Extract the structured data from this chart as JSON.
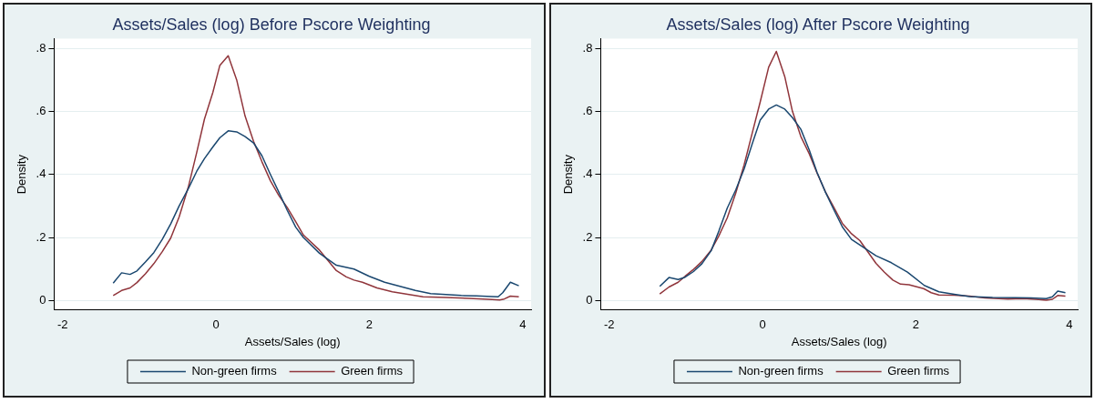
{
  "chart_data": [
    {
      "type": "line",
      "title": "Assets/Sales (log) Before Pscore Weighting",
      "xlabel": "Assets/Sales (log)",
      "ylabel": "Density",
      "xlim": [
        -2.11,
        4.11
      ],
      "xticks": [
        -2,
        0,
        2,
        4
      ],
      "ylim": [
        -0.03,
        0.83
      ],
      "yticks": [
        {
          "value": 0,
          "label": "0"
        },
        {
          "value": 0.2,
          "label": ".2"
        },
        {
          "value": 0.4,
          "label": ".4"
        },
        {
          "value": 0.6,
          "label": ".6"
        },
        {
          "value": 0.8,
          "label": ".8"
        }
      ],
      "grid": "y",
      "legend": "bottom",
      "marker": "none",
      "line_style": "solid",
      "series": [
        {
          "name": "Non-green firms",
          "color": "#1a476f",
          "x": [
            -1.34,
            -1.23,
            -1.12,
            -1.03,
            -0.92,
            -0.81,
            -0.7,
            -0.59,
            -0.48,
            -0.36,
            -0.25,
            -0.15,
            -0.04,
            0.05,
            0.16,
            0.27,
            0.38,
            0.49,
            0.6,
            0.71,
            0.82,
            0.93,
            1.04,
            1.14,
            1.35,
            1.57,
            1.8,
            2.0,
            2.2,
            2.4,
            2.6,
            2.8,
            3.0,
            3.2,
            3.4,
            3.6,
            3.68,
            3.74,
            3.84,
            3.95
          ],
          "values": [
            0.055,
            0.088,
            0.083,
            0.094,
            0.122,
            0.152,
            0.194,
            0.243,
            0.3,
            0.355,
            0.41,
            0.45,
            0.487,
            0.516,
            0.538,
            0.535,
            0.52,
            0.5,
            0.459,
            0.4,
            0.344,
            0.286,
            0.233,
            0.2,
            0.15,
            0.112,
            0.1,
            0.077,
            0.058,
            0.045,
            0.032,
            0.022,
            0.019,
            0.016,
            0.015,
            0.013,
            0.012,
            0.025,
            0.058,
            0.047
          ]
        },
        {
          "name": "Green firms",
          "color": "#90353b",
          "x": [
            -1.34,
            -1.23,
            -1.12,
            -1.03,
            -0.92,
            -0.81,
            -0.7,
            -0.59,
            -0.48,
            -0.36,
            -0.25,
            -0.15,
            -0.04,
            0.05,
            0.16,
            0.27,
            0.38,
            0.49,
            0.6,
            0.71,
            0.82,
            0.93,
            1.04,
            1.14,
            1.35,
            1.57,
            1.7,
            1.8,
            1.91,
            2.1,
            2.3,
            2.5,
            2.7,
            3.0,
            3.3,
            3.6,
            3.7,
            3.76,
            3.84,
            3.95
          ],
          "values": [
            0.016,
            0.032,
            0.04,
            0.057,
            0.085,
            0.117,
            0.155,
            0.198,
            0.265,
            0.36,
            0.47,
            0.575,
            0.66,
            0.745,
            0.776,
            0.7,
            0.585,
            0.505,
            0.44,
            0.38,
            0.333,
            0.295,
            0.25,
            0.208,
            0.16,
            0.095,
            0.075,
            0.065,
            0.058,
            0.04,
            0.028,
            0.02,
            0.012,
            0.01,
            0.007,
            0.003,
            0.002,
            0.005,
            0.014,
            0.012
          ]
        }
      ]
    },
    {
      "type": "line",
      "title": "Assets/Sales (log) After Pscore Weighting",
      "xlabel": "Assets/Sales (log)",
      "ylabel": "Density",
      "xlim": [
        -2.11,
        4.11
      ],
      "xticks": [
        -2,
        0,
        2,
        4
      ],
      "ylim": [
        -0.03,
        0.83
      ],
      "yticks": [
        {
          "value": 0,
          "label": "0"
        },
        {
          "value": 0.2,
          "label": ".2"
        },
        {
          "value": 0.4,
          "label": ".4"
        },
        {
          "value": 0.6,
          "label": ".6"
        },
        {
          "value": 0.8,
          "label": ".8"
        }
      ],
      "grid": "y",
      "legend": "bottom",
      "marker": "none",
      "line_style": "solid",
      "series": [
        {
          "name": "Non-green firms",
          "color": "#1a476f",
          "x": [
            -1.34,
            -1.22,
            -1.1,
            -1.01,
            -0.9,
            -0.79,
            -0.67,
            -0.57,
            -0.46,
            -0.35,
            -0.24,
            -0.13,
            -0.03,
            0.08,
            0.18,
            0.29,
            0.39,
            0.5,
            0.61,
            0.71,
            0.82,
            0.93,
            1.04,
            1.16,
            1.48,
            1.68,
            1.89,
            2.11,
            2.3,
            2.5,
            2.7,
            3.0,
            3.3,
            3.5,
            3.7,
            3.78,
            3.85,
            3.95
          ],
          "values": [
            0.045,
            0.073,
            0.067,
            0.074,
            0.092,
            0.117,
            0.158,
            0.22,
            0.293,
            0.35,
            0.417,
            0.5,
            0.572,
            0.607,
            0.62,
            0.607,
            0.58,
            0.543,
            0.477,
            0.407,
            0.344,
            0.288,
            0.234,
            0.194,
            0.142,
            0.12,
            0.09,
            0.048,
            0.028,
            0.02,
            0.013,
            0.01,
            0.009,
            0.008,
            0.006,
            0.012,
            0.03,
            0.025
          ]
        },
        {
          "name": "Green firms",
          "color": "#90353b",
          "x": [
            -1.34,
            -1.22,
            -1.1,
            -1.01,
            -0.9,
            -0.79,
            -0.67,
            -0.57,
            -0.46,
            -0.35,
            -0.24,
            -0.13,
            -0.03,
            0.08,
            0.18,
            0.29,
            0.39,
            0.5,
            0.61,
            0.71,
            0.82,
            0.93,
            1.04,
            1.16,
            1.27,
            1.48,
            1.59,
            1.7,
            1.8,
            1.91,
            2.1,
            2.2,
            2.3,
            2.5,
            2.7,
            2.9,
            3.2,
            3.4,
            3.6,
            3.7,
            3.78,
            3.85,
            3.95
          ],
          "values": [
            0.021,
            0.043,
            0.058,
            0.077,
            0.099,
            0.124,
            0.16,
            0.205,
            0.262,
            0.34,
            0.43,
            0.535,
            0.63,
            0.74,
            0.79,
            0.71,
            0.6,
            0.52,
            0.465,
            0.405,
            0.345,
            0.296,
            0.245,
            0.212,
            0.19,
            0.118,
            0.09,
            0.065,
            0.052,
            0.05,
            0.038,
            0.025,
            0.018,
            0.017,
            0.014,
            0.008,
            0.005,
            0.006,
            0.003,
            0.001,
            0.004,
            0.016,
            0.014
          ]
        }
      ]
    }
  ]
}
